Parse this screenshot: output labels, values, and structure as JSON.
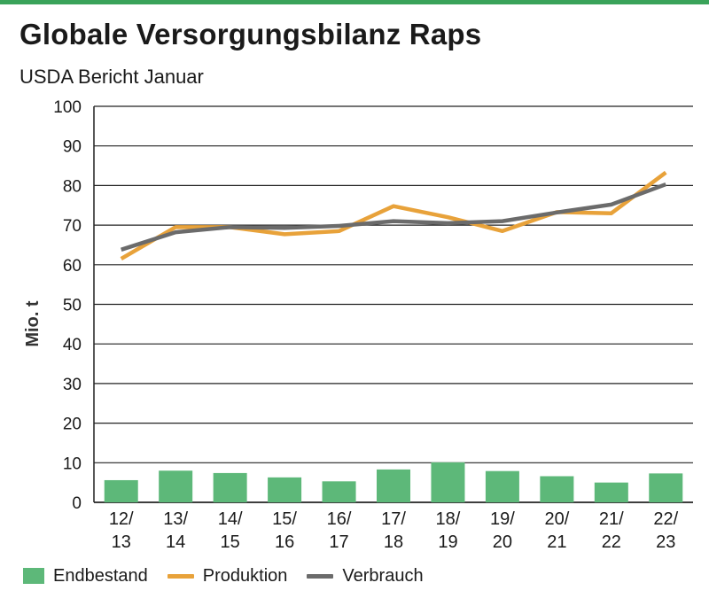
{
  "colors": {
    "accent": "#3aa35a",
    "bar": "#5db879",
    "produktion": "#e8a23a",
    "verbrauch": "#6b6b6b",
    "grid": "#222222"
  },
  "chart_data": {
    "type": "bar+line",
    "title": "Globale Versorgungsbilanz Raps",
    "subtitle": "USDA Bericht Januar",
    "ylabel": "Mio. t",
    "ylim": [
      0,
      100
    ],
    "yticks": [
      0,
      10,
      20,
      30,
      40,
      50,
      60,
      70,
      80,
      90,
      100
    ],
    "grid": true,
    "legend_position": "bottom",
    "categories": [
      [
        "12/",
        "13"
      ],
      [
        "13/",
        "14"
      ],
      [
        "14/",
        "15"
      ],
      [
        "15/",
        "16"
      ],
      [
        "16/",
        "17"
      ],
      [
        "17/",
        "18"
      ],
      [
        "18/",
        "19"
      ],
      [
        "19/",
        "20"
      ],
      [
        "20/",
        "21"
      ],
      [
        "21/",
        "22"
      ],
      [
        "22/",
        "23"
      ]
    ],
    "series": [
      {
        "name": "Endbestand",
        "kind": "bar",
        "values": [
          5.6,
          8.0,
          7.4,
          6.3,
          5.3,
          8.3,
          10.1,
          7.9,
          6.6,
          5.0,
          7.3
        ]
      },
      {
        "name": "Produktion",
        "kind": "line",
        "values": [
          61.5,
          69.5,
          69.5,
          67.7,
          68.5,
          74.8,
          72.0,
          68.5,
          73.3,
          73.0,
          83.3
        ]
      },
      {
        "name": "Verbrauch",
        "kind": "line",
        "values": [
          63.8,
          68.2,
          69.5,
          69.3,
          69.8,
          71.0,
          70.5,
          71.0,
          73.2,
          75.2,
          80.3
        ]
      }
    ]
  }
}
